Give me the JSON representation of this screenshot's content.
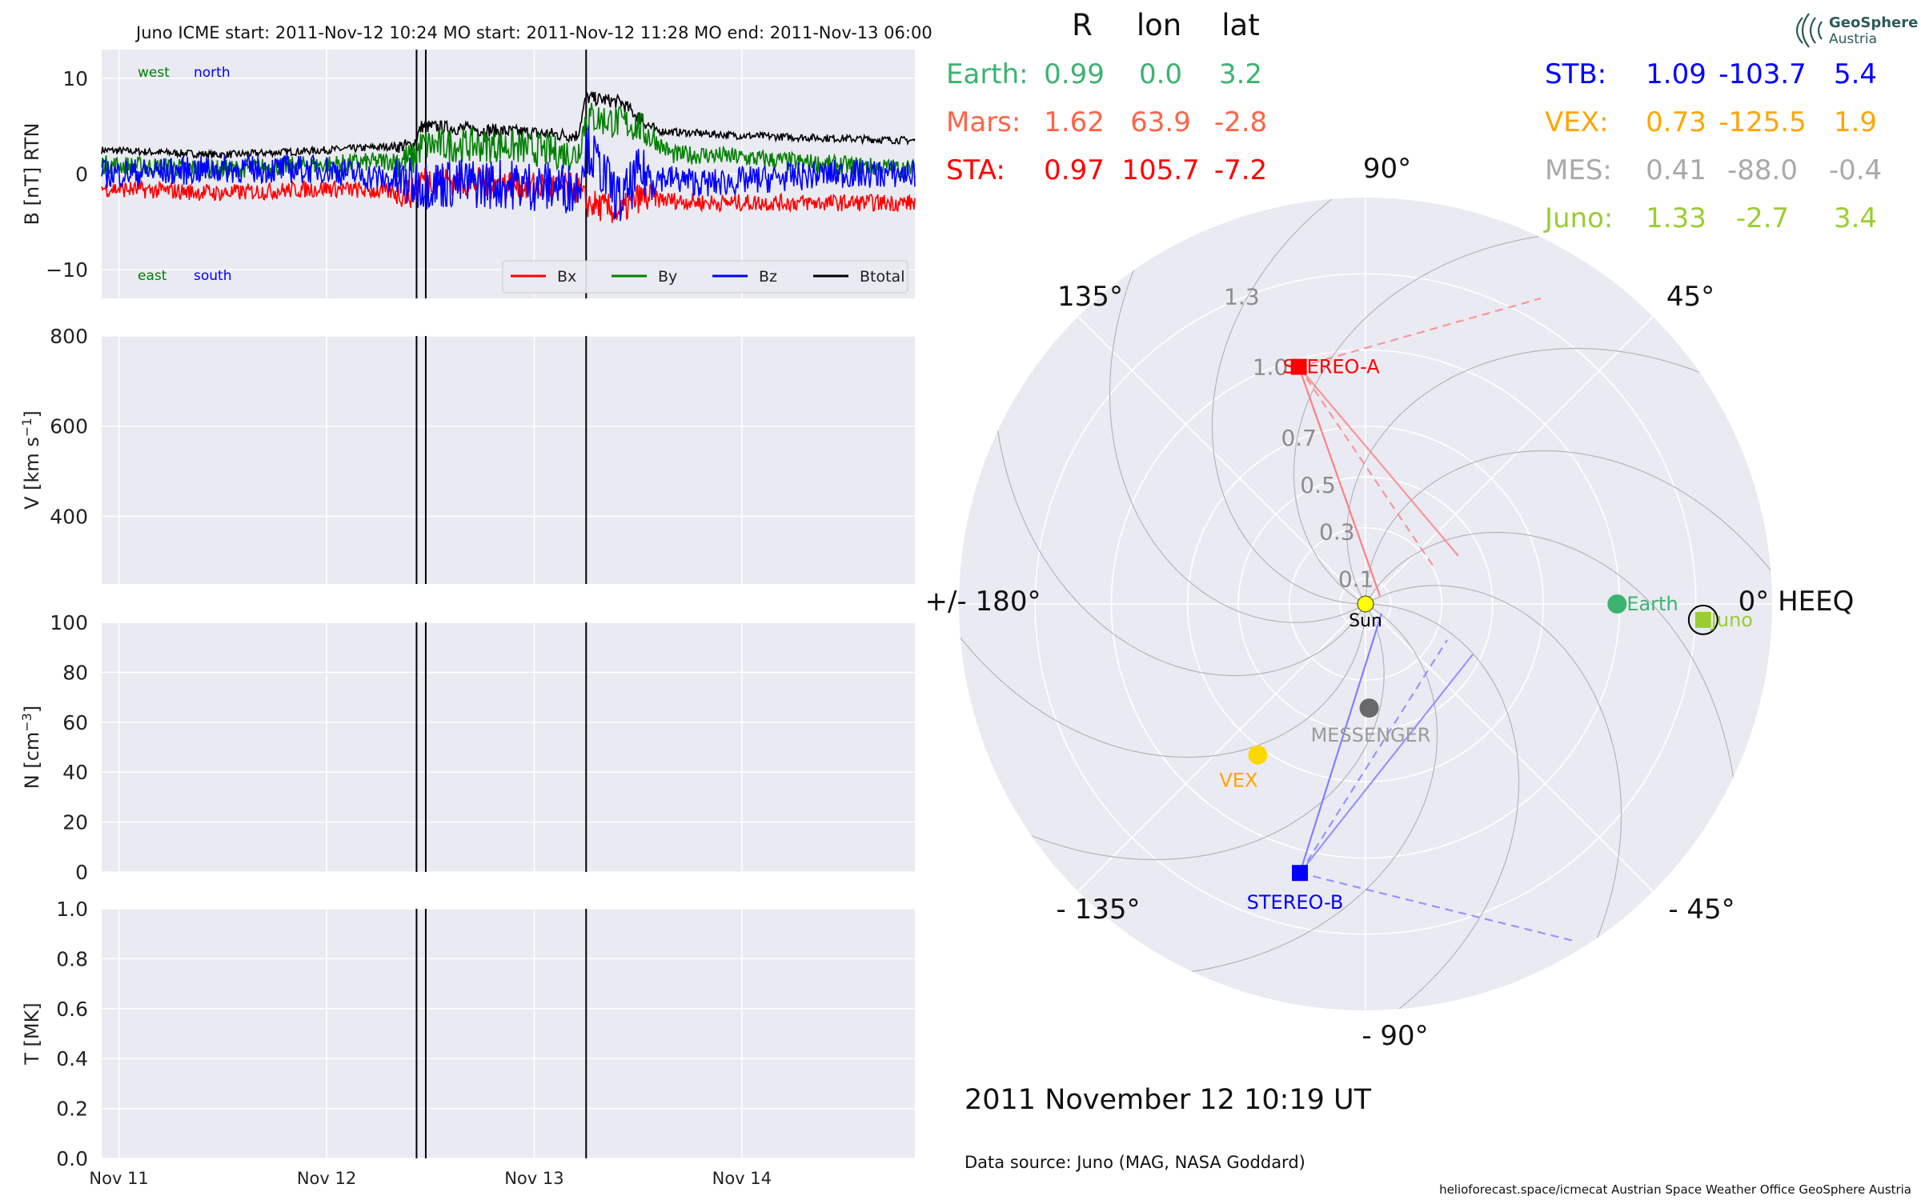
{
  "figure": {
    "header": "Juno    ICME start: 2011-Nov-12 10:24   MO start: 2011-Nov-12 11:28   MO end: 2011-Nov-13 06:00",
    "date_label": "2011 November 12  10:19 UT",
    "data_source": "Data source: Juno (MAG, NASA Goddard)",
    "footer": "helioforecast.space/icmecat   Austrian Space Weather Office   GeoSphere Austria",
    "logo_line1": "GeoSphere",
    "logo_line2": "Austria"
  },
  "colors": {
    "panel_bg": "#eaeaf2",
    "grid": "#ffffff",
    "bx": "#ff0000",
    "by": "#008000",
    "bz": "#0000ff",
    "btotal": "#000000",
    "earth": "#3cb371",
    "mars": "#ff6347",
    "sta": "#ff0000",
    "stb": "#0000ff",
    "vex": "#ffa500",
    "mes": "#a9a9a9",
    "juno": "#9acd32",
    "sun": "#ffff00"
  },
  "chart_data": [
    {
      "type": "line",
      "panel": "magnetic-field",
      "ylabel": "B [nT] RTN",
      "ylim": [
        -13,
        13
      ],
      "yticks": [
        "10",
        "0",
        "−10"
      ],
      "ytick_values": [
        10,
        0,
        -10
      ],
      "xlim": [
        "2011-11-10T22:00",
        "2011-11-14T20:00"
      ],
      "xticks": [
        "Nov 11",
        "Nov 12",
        "Nov 13",
        "Nov 14"
      ],
      "xtick_values": [
        "2011-11-11T00:00",
        "2011-11-12T00:00",
        "2011-11-13T00:00",
        "2011-11-14T00:00"
      ],
      "event_lines": [
        "2011-11-12T10:24",
        "2011-11-12T11:28",
        "2011-11-13T06:00"
      ],
      "annotations": {
        "west": "west",
        "north": "north",
        "east": "east",
        "south": "south"
      },
      "legend_position": "lower-right",
      "series": [
        {
          "name": "Bx",
          "color": "#ff0000",
          "x": [
            "2011-11-10T22:00",
            "2011-11-11T12:00",
            "2011-11-12T00:00",
            "2011-11-12T10:00",
            "2011-11-12T11:00",
            "2011-11-12T20:00",
            "2011-11-13T05:00",
            "2011-11-13T06:00",
            "2011-11-13T10:00",
            "2011-11-13T12:00",
            "2011-11-13T20:00",
            "2011-11-14T10:00",
            "2011-11-14T20:00"
          ],
          "values": [
            -1.5,
            -2,
            -1.5,
            -2,
            -0.5,
            -1,
            -1.5,
            -3,
            -4,
            -2.5,
            -3,
            -3,
            -3
          ]
        },
        {
          "name": "By",
          "color": "#008000",
          "x": [
            "2011-11-10T22:00",
            "2011-11-11T12:00",
            "2011-11-12T00:00",
            "2011-11-12T10:00",
            "2011-11-12T11:00",
            "2011-11-12T20:00",
            "2011-11-13T05:00",
            "2011-11-13T06:00",
            "2011-11-13T12:00",
            "2011-11-13T16:00",
            "2011-11-13T20:00",
            "2011-11-14T10:00",
            "2011-11-14T20:00"
          ],
          "values": [
            1,
            0.5,
            1,
            1.5,
            3,
            3,
            2,
            6,
            5,
            2,
            2,
            1,
            0.5
          ]
        },
        {
          "name": "Bz",
          "color": "#0000ff",
          "x": [
            "2011-11-10T22:00",
            "2011-11-11T12:00",
            "2011-11-12T00:00",
            "2011-11-12T10:00",
            "2011-11-12T11:00",
            "2011-11-12T20:00",
            "2011-11-13T05:00",
            "2011-11-13T06:00",
            "2011-11-13T10:00",
            "2011-11-13T12:00",
            "2011-11-13T20:00",
            "2011-11-14T10:00",
            "2011-11-14T20:00"
          ],
          "values": [
            0,
            0.5,
            0.5,
            -1,
            -1,
            -1,
            -1.5,
            3,
            -3,
            0,
            -1,
            0,
            0
          ]
        },
        {
          "name": "Btotal",
          "color": "#000000",
          "x": [
            "2011-11-10T22:00",
            "2011-11-11T12:00",
            "2011-11-12T00:00",
            "2011-11-12T10:00",
            "2011-11-12T11:00",
            "2011-11-12T20:00",
            "2011-11-13T05:00",
            "2011-11-13T06:00",
            "2011-11-13T10:00",
            "2011-11-13T14:00",
            "2011-11-14T00:00",
            "2011-11-14T20:00"
          ],
          "values": [
            2.5,
            2,
            2.5,
            3,
            5,
            4.5,
            4,
            8,
            7.5,
            4.5,
            4,
            3.5
          ]
        }
      ]
    },
    {
      "type": "line",
      "panel": "velocity",
      "ylabel_main": "V [km s",
      "ylabel_sup": "−1",
      "ylabel_end": "]",
      "ylim": [
        250,
        800
      ],
      "yticks": [
        "800",
        "600",
        "400"
      ],
      "ytick_values": [
        800,
        600,
        400
      ],
      "series": []
    },
    {
      "type": "line",
      "panel": "density",
      "ylabel_main": "N [cm",
      "ylabel_sup": "−3",
      "ylabel_end": "]",
      "ylim": [
        0,
        100
      ],
      "yticks": [
        "100",
        "80",
        "60",
        "40",
        "20",
        "0"
      ],
      "ytick_values": [
        100,
        80,
        60,
        40,
        20,
        0
      ],
      "series": []
    },
    {
      "type": "line",
      "panel": "temperature",
      "ylabel": "T [MK]",
      "ylim": [
        0,
        1
      ],
      "yticks": [
        "1.0",
        "0.8",
        "0.6",
        "0.4",
        "0.2",
        "0.0"
      ],
      "ytick_values": [
        1.0,
        0.8,
        0.6,
        0.4,
        0.2,
        0.0
      ],
      "series": []
    },
    {
      "type": "scatter",
      "panel": "polar-positions",
      "rlim": [
        0,
        1.6
      ],
      "radial_ticks": [
        "0.1",
        "0.3",
        "0.5",
        "0.7",
        "1.0",
        "1.3"
      ],
      "radial_tick_values": [
        0.1,
        0.3,
        0.5,
        0.7,
        1.0,
        1.3
      ],
      "angle_labels": [
        "0° HEEQ",
        "45°",
        "90°",
        "135°",
        "+/- 180°",
        "- 135°",
        "- 90°",
        "- 45°"
      ],
      "bodies": [
        {
          "name": "Sun",
          "r": 0.0,
          "lon": 0.0,
          "marker": "circle",
          "color": "#ffff00"
        },
        {
          "name": "Earth",
          "r": 0.99,
          "lon": 0.0,
          "marker": "circle",
          "color": "#3cb371"
        },
        {
          "name": "Juno",
          "r": 1.33,
          "lon": -2.7,
          "marker": "square",
          "color": "#9acd32"
        },
        {
          "name": "STEREO-A",
          "r": 0.97,
          "lon": 105.7,
          "marker": "square",
          "color": "#ff0000"
        },
        {
          "name": "STEREO-B",
          "r": 1.09,
          "lon": -103.7,
          "marker": "square",
          "color": "#0000ff"
        },
        {
          "name": "VEX",
          "r": 0.73,
          "lon": -125.5,
          "marker": "circle",
          "color": "#ffd700"
        },
        {
          "name": "MESSENGER",
          "r": 0.41,
          "lon": -88.0,
          "marker": "circle",
          "color": "#696969"
        }
      ],
      "table": {
        "headers": [
          "R",
          "lon",
          "lat"
        ],
        "rows_left": [
          {
            "label": "Earth:",
            "R": "0.99",
            "lon": "0.0",
            "lat": "3.2",
            "color": "#3cb371"
          },
          {
            "label": "Mars:",
            "R": "1.62",
            "lon": "63.9",
            "lat": "-2.8",
            "color": "#ff6347"
          },
          {
            "label": "STA:",
            "R": "0.97",
            "lon": "105.7",
            "lat": "-7.2",
            "color": "#ff0000"
          }
        ],
        "rows_right": [
          {
            "label": "STB:",
            "R": "1.09",
            "lon": "-103.7",
            "lat": "5.4",
            "color": "#0000ff"
          },
          {
            "label": "VEX:",
            "R": "0.73",
            "lon": "-125.5",
            "lat": "1.9",
            "color": "#ffa500"
          },
          {
            "label": "MES:",
            "R": "0.41",
            "lon": "-88.0",
            "lat": "-0.4",
            "color": "#a9a9a9"
          },
          {
            "label": "Juno:",
            "R": "1.33",
            "lon": "-2.7",
            "lat": "3.4",
            "color": "#9acd32"
          }
        ]
      }
    }
  ]
}
